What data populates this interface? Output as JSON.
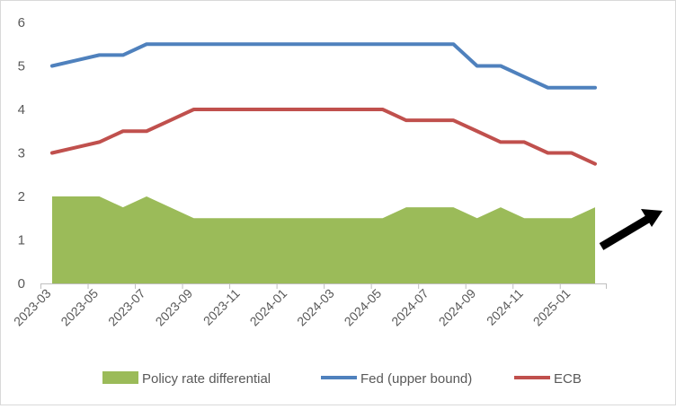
{
  "chart_data": {
    "type": "line",
    "title": "",
    "xlabel": "",
    "ylabel": "",
    "ylim": [
      0,
      6
    ],
    "yticks": [
      "0",
      "1",
      "2",
      "3",
      "4",
      "5",
      "6"
    ],
    "categories": [
      "2023-03",
      "2023-04",
      "2023-05",
      "2023-06",
      "2023-07",
      "2023-08",
      "2023-09",
      "2023-10",
      "2023-11",
      "2023-12",
      "2024-01",
      "2024-02",
      "2024-03",
      "2024-04",
      "2024-05",
      "2024-06",
      "2024-07",
      "2024-08",
      "2024-09",
      "2024-10",
      "2024-11",
      "2024-12",
      "2025-01",
      "2025-02"
    ],
    "xtick_labels": [
      "2023-03",
      "2023-05",
      "2023-07",
      "2023-09",
      "2023-11",
      "2024-01",
      "2024-03",
      "2024-05",
      "2024-07",
      "2024-09",
      "2024-11",
      "2025-01"
    ],
    "series": [
      {
        "name": "Policy rate differential",
        "kind": "area",
        "color": "#9bbb59",
        "values": [
          2,
          2,
          2,
          1.75,
          2,
          1.75,
          1.5,
          1.5,
          1.5,
          1.5,
          1.5,
          1.5,
          1.5,
          1.5,
          1.5,
          1.75,
          1.75,
          1.75,
          1.5,
          1.75,
          1.5,
          1.5,
          1.5,
          1.75
        ]
      },
      {
        "name": "Fed (upper bound)",
        "kind": "line",
        "color": "#4f81bd",
        "values": [
          5,
          5.125,
          5.25,
          5.25,
          5.5,
          5.5,
          5.5,
          5.5,
          5.5,
          5.5,
          5.5,
          5.5,
          5.5,
          5.5,
          5.5,
          5.5,
          5.5,
          5.5,
          5,
          5,
          4.75,
          4.5,
          4.5,
          4.5
        ]
      },
      {
        "name": "ECB",
        "kind": "line",
        "color": "#c0504d",
        "values": [
          3,
          3.125,
          3.25,
          3.5,
          3.5,
          3.75,
          4,
          4,
          4,
          4,
          4,
          4,
          4,
          4,
          4,
          3.75,
          3.75,
          3.75,
          3.5,
          3.25,
          3.25,
          3,
          3,
          2.75
        ]
      }
    ],
    "legend_position": "bottom",
    "annotations": [
      {
        "type": "arrow",
        "color": "#000000",
        "direction": "up-right"
      }
    ]
  }
}
